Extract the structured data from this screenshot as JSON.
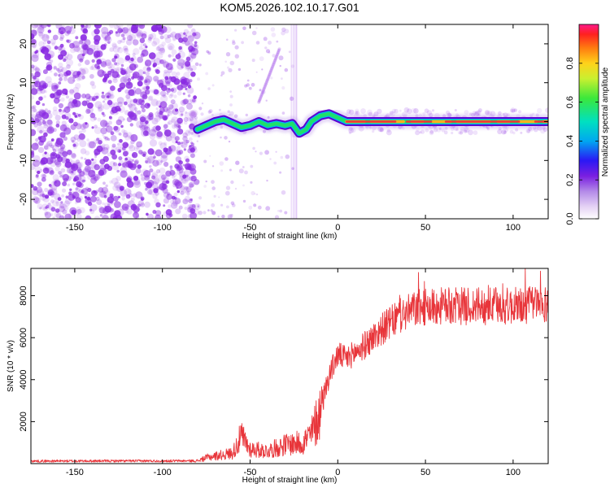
{
  "title": "KOM5.2026.102.10.17.G01",
  "chart_data": [
    {
      "type": "heatmap",
      "xlabel": "Height of straight line (km)",
      "ylabel": "Frequency (Hz)",
      "xlim": [
        -175,
        120
      ],
      "ylim": [
        -25,
        25
      ],
      "x_ticks": [
        -150,
        -100,
        -50,
        0,
        50,
        100
      ],
      "y_ticks": [
        -20,
        -10,
        0,
        10,
        20
      ],
      "noise_region_x": [
        -175,
        -80
      ],
      "sparse_region_x": [
        -80,
        -25
      ],
      "vertical_streaks_x": [
        -25
      ],
      "track": [
        {
          "x": -80,
          "y": -2
        },
        {
          "x": -75,
          "y": -1
        },
        {
          "x": -70,
          "y": 0
        },
        {
          "x": -65,
          "y": 0.5
        },
        {
          "x": -60,
          "y": -0.5
        },
        {
          "x": -55,
          "y": -1.5
        },
        {
          "x": -50,
          "y": -1
        },
        {
          "x": -45,
          "y": 0
        },
        {
          "x": -40,
          "y": -1
        },
        {
          "x": -35,
          "y": -0.5
        },
        {
          "x": -30,
          "y": -1
        },
        {
          "x": -26,
          "y": -0.5
        },
        {
          "x": -22,
          "y": -3
        },
        {
          "x": -18,
          "y": -2
        },
        {
          "x": -15,
          "y": 0
        },
        {
          "x": -10,
          "y": 1.5
        },
        {
          "x": -5,
          "y": 2
        },
        {
          "x": 0,
          "y": 1
        },
        {
          "x": 5,
          "y": 0
        },
        {
          "x": 120,
          "y": 0
        }
      ],
      "colorbar": {
        "label": "Normalized spectral amplitude",
        "range": [
          0,
          1
        ],
        "ticks": [
          0.0,
          0.2,
          0.4,
          0.6,
          0.8
        ],
        "tick_labels": [
          "0.0",
          "0.2",
          "0.4",
          "0.6",
          "0.8"
        ]
      }
    },
    {
      "type": "line",
      "xlabel": "Height of straight line (km)",
      "ylabel": "SNR (10 * v/v)",
      "xlim": [
        -175,
        120
      ],
      "ylim": [
        0,
        9300
      ],
      "x_ticks": [
        -150,
        -100,
        -50,
        0,
        50,
        100
      ],
      "y_ticks": [
        2000,
        4000,
        6000,
        8000
      ],
      "series_color": "#e8353a",
      "envelope": [
        {
          "x": -175,
          "y": 120
        },
        {
          "x": -80,
          "y": 130
        },
        {
          "x": -74,
          "y": 300
        },
        {
          "x": -60,
          "y": 500
        },
        {
          "x": -55,
          "y": 1300
        },
        {
          "x": -50,
          "y": 700
        },
        {
          "x": -40,
          "y": 600
        },
        {
          "x": -30,
          "y": 900
        },
        {
          "x": -20,
          "y": 1000
        },
        {
          "x": -15,
          "y": 1400
        },
        {
          "x": -10,
          "y": 2500
        },
        {
          "x": -5,
          "y": 4200
        },
        {
          "x": 0,
          "y": 5200
        },
        {
          "x": 5,
          "y": 5000
        },
        {
          "x": 15,
          "y": 5600
        },
        {
          "x": 25,
          "y": 6400
        },
        {
          "x": 35,
          "y": 7000
        },
        {
          "x": 45,
          "y": 7400
        },
        {
          "x": 60,
          "y": 7500
        },
        {
          "x": 80,
          "y": 7500
        },
        {
          "x": 100,
          "y": 7500
        },
        {
          "x": 120,
          "y": 7600
        }
      ]
    }
  ],
  "colors": {
    "noise": "#8a2be2",
    "track_outer": "#5a00d0",
    "track_mid": "#1ee06a",
    "track_core": "#e8353a",
    "snr_line": "#e8353a"
  }
}
